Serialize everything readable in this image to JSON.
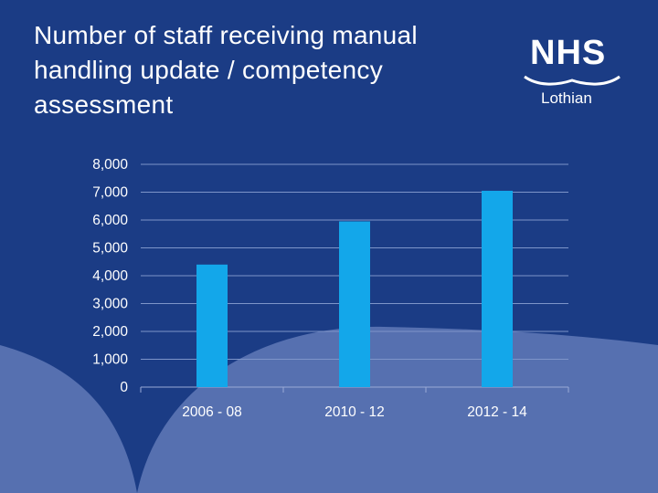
{
  "slide": {
    "title_lines": [
      "Number of staff receiving manual",
      "handling update / competency",
      "assessment"
    ]
  },
  "logo": {
    "main": "NHS",
    "sub": "Lothian"
  },
  "colors": {
    "background": "#1b3c85",
    "swoosh": "#5670b0",
    "bar": "#13a7ea",
    "gridline": "#7e95c9"
  },
  "chart_data": {
    "type": "bar",
    "title": "",
    "xlabel": "",
    "ylabel": "",
    "categories": [
      "2006 - 08",
      "2010 - 12",
      "2012 - 14"
    ],
    "values": [
      4400,
      5950,
      7050
    ],
    "ylim": [
      0,
      8000
    ],
    "yticks": [
      0,
      1000,
      2000,
      3000,
      4000,
      5000,
      6000,
      7000,
      8000
    ],
    "ytick_labels": [
      "0",
      "1,000",
      "2,000",
      "3,000",
      "4,000",
      "5,000",
      "6,000",
      "7,000",
      "8,000"
    ],
    "grid": true,
    "legend": "none"
  }
}
